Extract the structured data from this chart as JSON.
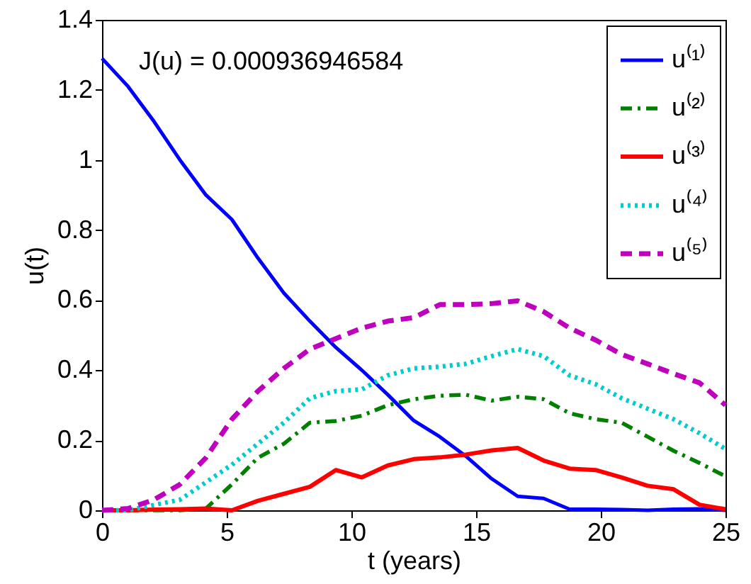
{
  "chart_data": {
    "type": "line",
    "xlabel": "t (years)",
    "ylabel": "u(t)",
    "annotations": [
      "J(u) = 0.000936946584"
    ],
    "x": [
      0,
      1.042,
      2.083,
      3.125,
      4.167,
      5.208,
      6.25,
      7.292,
      8.333,
      9.375,
      10.417,
      11.458,
      12.5,
      13.542,
      14.583,
      15.625,
      16.667,
      17.708,
      18.75,
      19.792,
      20.833,
      21.875,
      22.917,
      23.958,
      25
    ],
    "xlim": [
      0,
      25
    ],
    "xticks": [
      0,
      5,
      10,
      15,
      20,
      25
    ],
    "ylim": [
      0,
      1.4
    ],
    "yticks": [
      0,
      0.2,
      0.4,
      0.6,
      0.8,
      1,
      1.2,
      1.4
    ],
    "grid": false,
    "legend": "top right",
    "marker": "none",
    "series": [
      {
        "name": "u⁽¹⁾",
        "color": "#0000ff",
        "line_style": "solid",
        "values": [
          1.29,
          1.21,
          1.11,
          1.0,
          0.9,
          0.83,
          0.72,
          0.62,
          0.54,
          0.465,
          0.4,
          0.33,
          0.256,
          0.21,
          0.155,
          0.09,
          0.04,
          0.034,
          0.003,
          0.003,
          0.002,
          0,
          0.003,
          0.004,
          0
        ]
      },
      {
        "name": "u⁽²⁾",
        "color": "#008000",
        "line_style": "dashdot",
        "values": [
          0,
          0,
          0,
          0,
          0.005,
          0.074,
          0.15,
          0.19,
          0.25,
          0.255,
          0.27,
          0.3,
          0.317,
          0.327,
          0.33,
          0.313,
          0.324,
          0.317,
          0.277,
          0.26,
          0.25,
          0.21,
          0.17,
          0.135,
          0.097
        ]
      },
      {
        "name": "u⁽³⁾",
        "color": "#ff0000",
        "line_style": "solid",
        "values": [
          0,
          0,
          0.002,
          0.003,
          0.005,
          0,
          0.027,
          0.047,
          0.067,
          0.115,
          0.094,
          0.128,
          0.146,
          0.151,
          0.159,
          0.171,
          0.178,
          0.142,
          0.119,
          0.115,
          0.094,
          0.07,
          0.06,
          0.016,
          0.003
        ]
      },
      {
        "name": "u⁽⁴⁾",
        "color": "#00cccc",
        "line_style": "dotted",
        "values": [
          0,
          0,
          0.015,
          0.03,
          0.08,
          0.13,
          0.19,
          0.25,
          0.32,
          0.34,
          0.345,
          0.385,
          0.405,
          0.41,
          0.418,
          0.44,
          0.46,
          0.44,
          0.385,
          0.36,
          0.32,
          0.29,
          0.26,
          0.22,
          0.175
        ]
      },
      {
        "name": "u⁽⁵⁾",
        "color": "#bf00bf",
        "line_style": "dashed",
        "values": [
          0,
          0.005,
          0.03,
          0.074,
          0.15,
          0.26,
          0.34,
          0.405,
          0.46,
          0.49,
          0.52,
          0.54,
          0.55,
          0.587,
          0.587,
          0.59,
          0.598,
          0.567,
          0.52,
          0.486,
          0.445,
          0.418,
          0.39,
          0.364,
          0.3
        ]
      }
    ]
  }
}
